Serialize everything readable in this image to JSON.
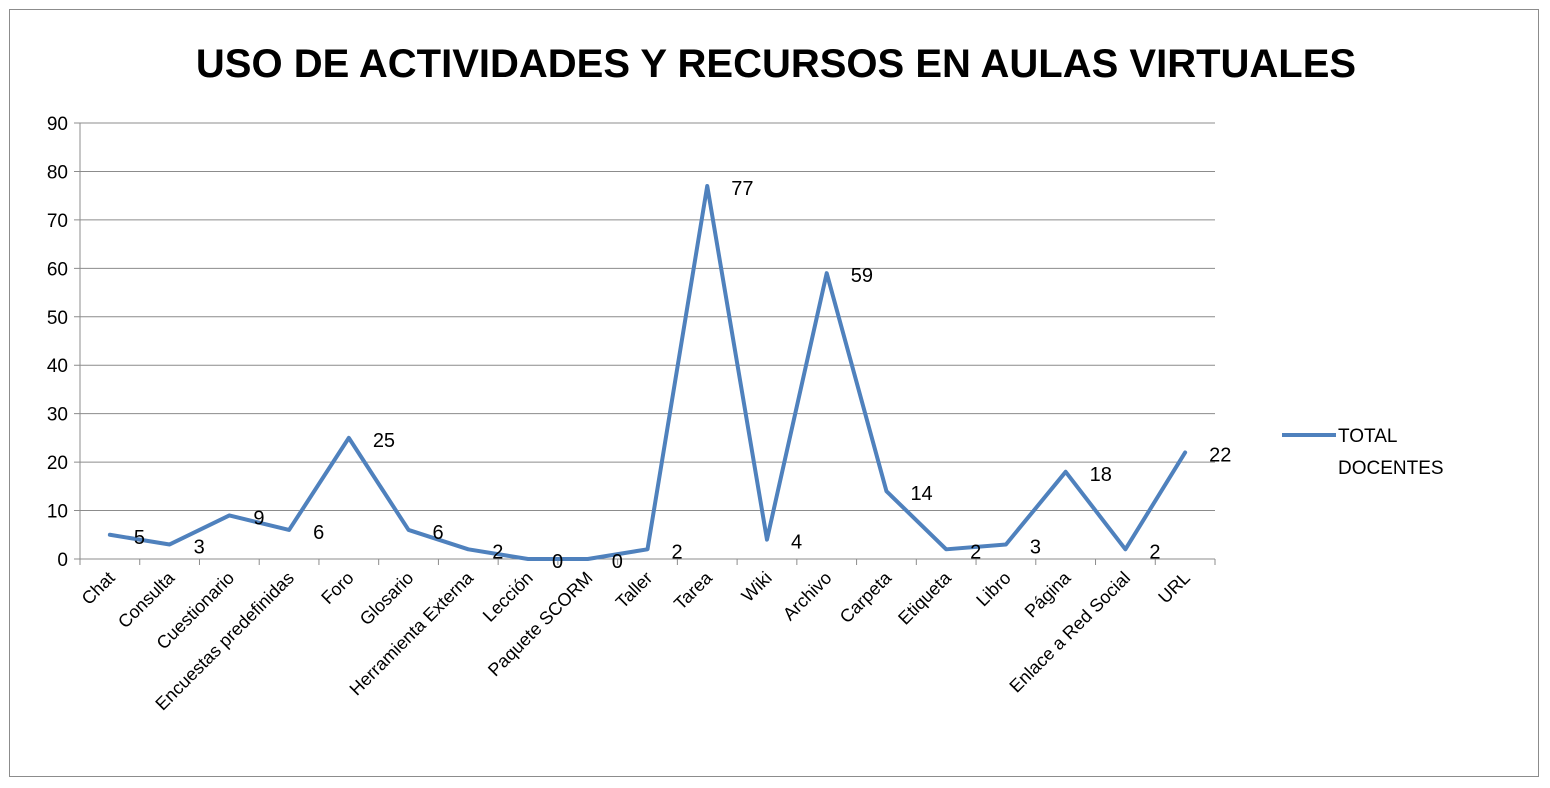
{
  "chart_data": {
    "type": "line",
    "title": "USO DE ACTIVIDADES Y RECURSOS EN AULAS VIRTUALES",
    "xlabel": "",
    "ylabel": "",
    "ylim": [
      0,
      90
    ],
    "yticks": [
      "0",
      "10",
      "20",
      "30",
      "40",
      "50",
      "60",
      "70",
      "80",
      "90"
    ],
    "grid": true,
    "legend_position": "right",
    "categories": [
      "Chat",
      "Consulta",
      "Cuestionario",
      "Encuestas predefinidas",
      "Foro",
      "Glosario",
      "Herramienta Externa",
      "Lección",
      "Paquete SCORM",
      "Taller",
      "Tarea",
      "Wiki",
      "Archivo",
      "Carpeta",
      "Etiqueta",
      "Libro",
      "Página",
      "Enlace a Red Social",
      "URL"
    ],
    "series": [
      {
        "name": "TOTAL DOCENTES",
        "name_lines": [
          "TOTAL",
          "DOCENTES"
        ],
        "values": [
          5,
          3,
          9,
          6,
          25,
          6,
          2,
          0,
          0,
          2,
          77,
          4,
          59,
          14,
          2,
          3,
          18,
          2,
          22
        ],
        "color": "#4f81bd"
      }
    ],
    "gridline_color": "#8c8c8c",
    "axis_color": "#8c8c8c"
  }
}
